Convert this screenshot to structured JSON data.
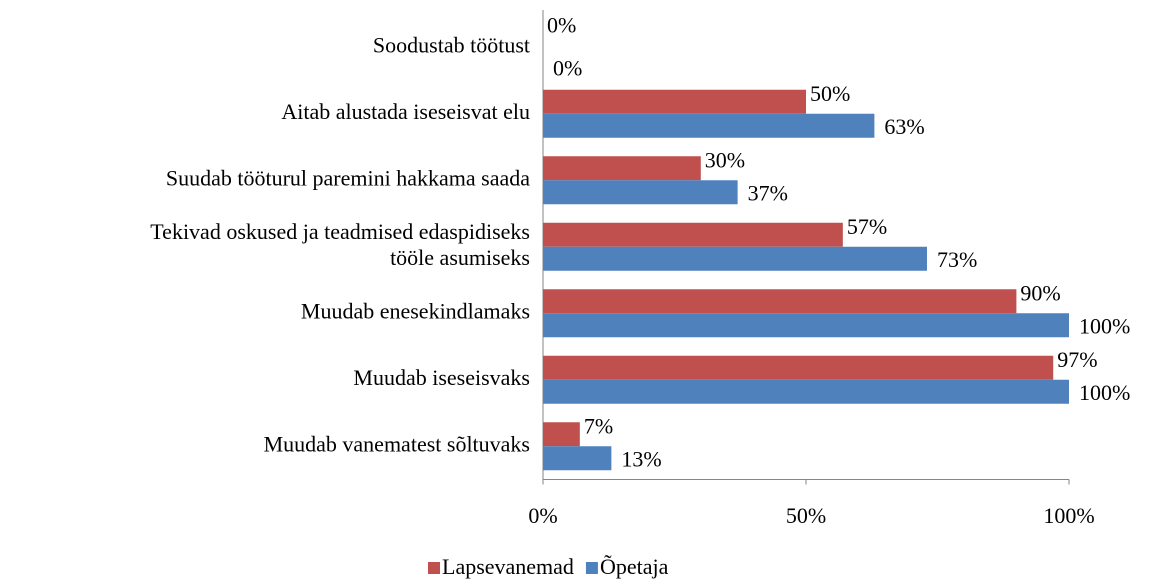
{
  "chart_data": {
    "type": "bar",
    "orientation": "horizontal",
    "categories": [
      "Soodustab töötust",
      "Aitab alustada iseseisvat elu",
      "Suudab tööturul paremini hakkama saada",
      "Tekivad oskused ja teadmised edaspidiseks\ntööle asumiseks",
      "Muudab enesekindlamaks",
      "Muudab iseseisvaks",
      "Muudab vanematest sõltuvaks"
    ],
    "series": [
      {
        "name": "Lapsevanemad",
        "color": "#c0504d",
        "values": [
          0,
          50,
          30,
          57,
          90,
          97,
          7
        ],
        "value_labels": [
          "0%",
          "50%",
          "30%",
          "57%",
          "90%",
          "97%",
          "7%"
        ]
      },
      {
        "name": "Õpetaja",
        "color": "#4f81bd",
        "values": [
          0,
          63,
          37,
          73,
          100,
          100,
          13
        ],
        "value_labels": [
          "0%",
          "63%",
          "37%",
          "73%",
          "100%",
          "100%",
          "13%"
        ]
      }
    ],
    "xlim": [
      0,
      100
    ],
    "xticks": [
      {
        "value": 0,
        "label": "0%"
      },
      {
        "value": 50,
        "label": "50%"
      },
      {
        "value": 100,
        "label": "100%"
      }
    ],
    "grid": false,
    "legend": "bottom"
  }
}
